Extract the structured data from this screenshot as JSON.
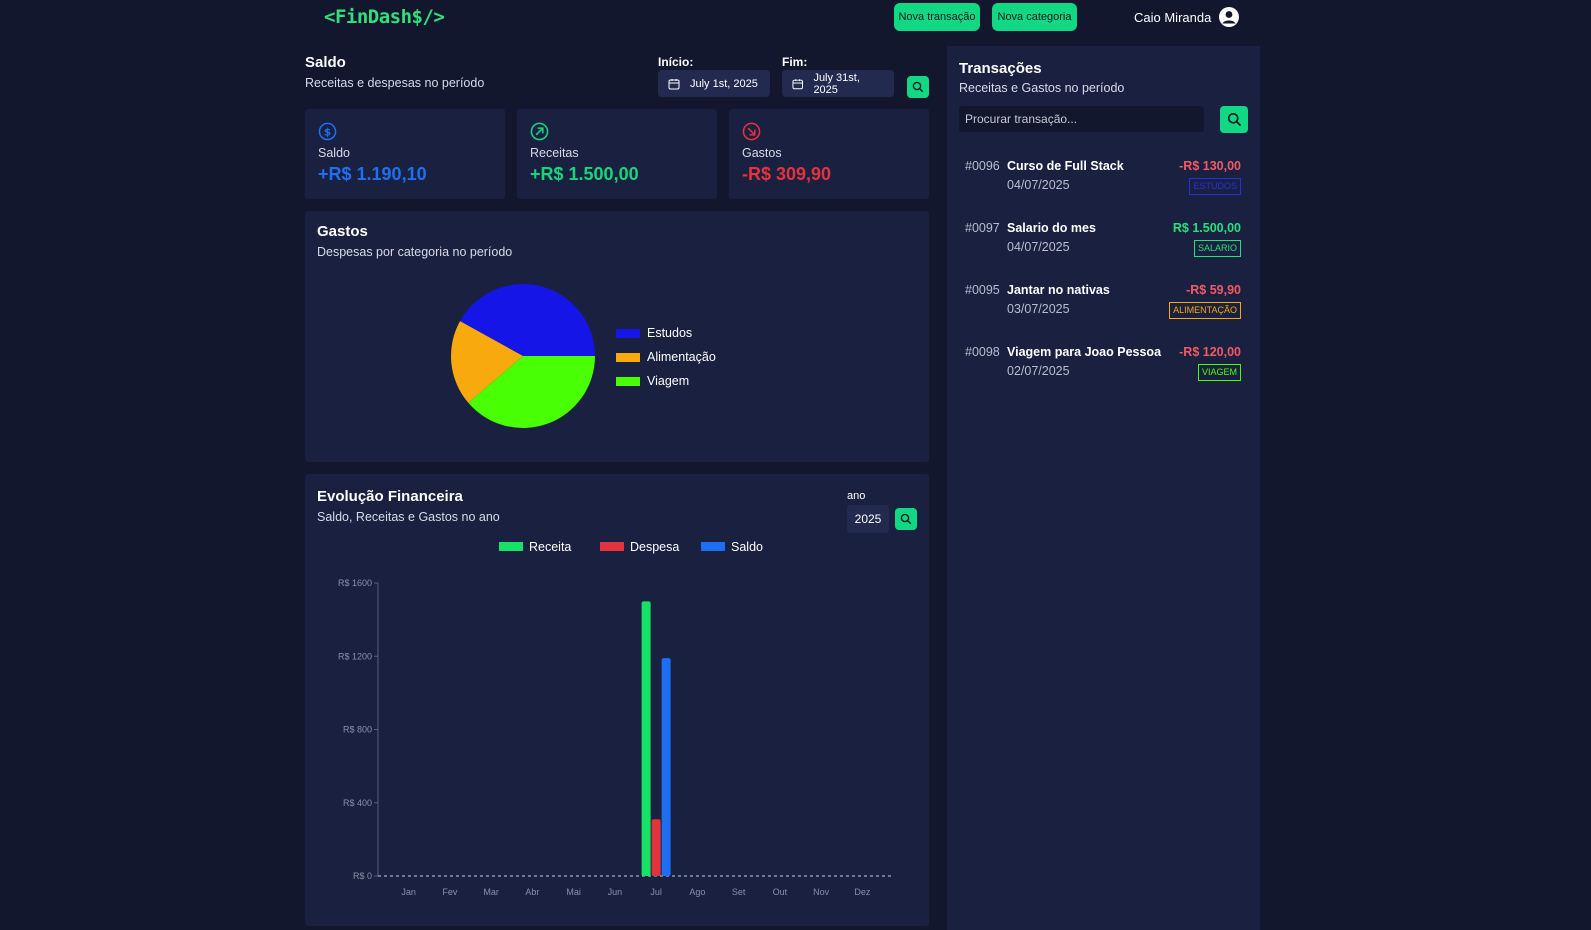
{
  "header": {
    "logo": "<FinDash$/>",
    "new_transaction_label": "Nova transação",
    "new_category_label": "Nova categoria",
    "user_name": "Caio Miranda"
  },
  "balance": {
    "title": "Saldo",
    "subtitle": "Receitas e despesas no período",
    "start_label": "Início:",
    "start_date": "July 1st, 2025",
    "end_label": "Fim:",
    "end_date": "July 31st, 2025"
  },
  "cards": [
    {
      "label": "Saldo",
      "value": "+R$ 1.190,10",
      "color": "#1e6ff2",
      "icon": "dollar-circle-icon"
    },
    {
      "label": "Receitas",
      "value": "+R$ 1.500,00",
      "color": "#18d57d",
      "icon": "arrow-up-right-icon"
    },
    {
      "label": "Gastos",
      "value": "-R$ 309,90",
      "color": "#e5323e",
      "icon": "arrow-down-right-icon"
    }
  ],
  "expenses": {
    "title": "Gastos",
    "subtitle": "Despesas por categoria no período",
    "legend": [
      {
        "label": "Estudos",
        "color": "#1515e8"
      },
      {
        "label": "Alimentação",
        "color": "#f7a90e"
      },
      {
        "label": "Viagem",
        "color": "#48ff04"
      }
    ]
  },
  "evolution": {
    "title": "Evolução Financeira",
    "subtitle": "Saldo, Receitas e Gastos no ano",
    "year_label": "ano",
    "year_value": "2025"
  },
  "chart_data": [
    {
      "type": "pie",
      "categories": [
        "Estudos",
        "Alimentação",
        "Viagem"
      ],
      "values": [
        130.0,
        59.9,
        120.0
      ],
      "colors": [
        "#1515e8",
        "#f7a90e",
        "#48ff04"
      ],
      "legend": "right"
    },
    {
      "type": "bar",
      "categories": [
        "Jan",
        "Fev",
        "Mar",
        "Abr",
        "Mai",
        "Jun",
        "Jul",
        "Ago",
        "Set",
        "Out",
        "Nov",
        "Dez"
      ],
      "series": [
        {
          "name": "Receita",
          "color": "#18e168",
          "values": [
            0,
            0,
            0,
            0,
            0,
            0,
            1500,
            0,
            0,
            0,
            0,
            0
          ]
        },
        {
          "name": "Despesa",
          "color": "#e0333e",
          "values": [
            0,
            0,
            0,
            0,
            0,
            0,
            309.9,
            0,
            0,
            0,
            0,
            0
          ]
        },
        {
          "name": "Saldo",
          "color": "#1d6ef0",
          "values": [
            0,
            0,
            0,
            0,
            0,
            0,
            1190.1,
            0,
            0,
            0,
            0,
            0
          ]
        }
      ],
      "y_ticks": [
        "R$ 0",
        "R$ 400",
        "R$ 800",
        "R$ 1200",
        "R$ 1600"
      ],
      "ylim": [
        0,
        1600
      ],
      "legend": "top"
    }
  ],
  "transactions": {
    "title": "Transações",
    "subtitle": "Receitas e Gastos no período",
    "search_placeholder": "Procurar transação...",
    "items": [
      {
        "id": "#0096",
        "title": "Curso de Full Stack",
        "date": "04/07/2025",
        "amount": "-R$ 130,00",
        "amount_color": "#f25a63",
        "tag": "ESTUDOS",
        "tag_color": "#2430e0"
      },
      {
        "id": "#0097",
        "title": "Salario do mes",
        "date": "04/07/2025",
        "amount": "R$ 1.500,00",
        "amount_color": "#27e07a",
        "tag": "SALARIO",
        "tag_color": "#27e07a"
      },
      {
        "id": "#0095",
        "title": "Jantar no nativas",
        "date": "03/07/2025",
        "amount": "-R$ 59,90",
        "amount_color": "#f25a63",
        "tag": "ALIMENTAÇÃO",
        "tag_color": "#f7a90e"
      },
      {
        "id": "#0098",
        "title": "Viagem para Joao Pessoa",
        "date": "02/07/2025",
        "amount": "-R$ 120,00",
        "amount_color": "#f25a63",
        "tag": "VIAGEM",
        "tag_color": "#48ff04"
      }
    ]
  }
}
